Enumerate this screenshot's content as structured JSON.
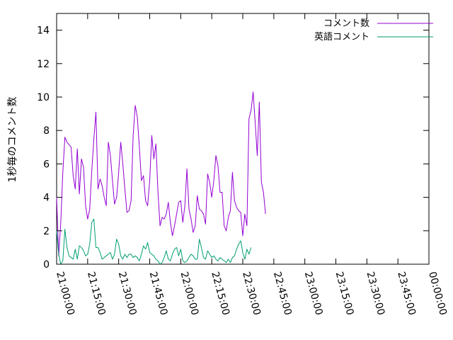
{
  "chart_data": {
    "type": "line",
    "ylabel": "1秒毎のコメント数",
    "xlabel": "",
    "ylim": [
      0,
      15
    ],
    "y_ticks": [
      0,
      2,
      4,
      6,
      8,
      10,
      12,
      14
    ],
    "x_range_minutes": [
      0,
      180
    ],
    "x_ticks": [
      {
        "minute": 0,
        "label": "21:00:00"
      },
      {
        "minute": 15,
        "label": "21:15:00"
      },
      {
        "minute": 30,
        "label": "21:30:00"
      },
      {
        "minute": 45,
        "label": "21:45:00"
      },
      {
        "minute": 60,
        "label": "22:00:00"
      },
      {
        "minute": 75,
        "label": "22:15:00"
      },
      {
        "minute": 90,
        "label": "22:30:00"
      },
      {
        "minute": 105,
        "label": "22:45:00"
      },
      {
        "minute": 120,
        "label": "23:00:00"
      },
      {
        "minute": 135,
        "label": "23:15:00"
      },
      {
        "minute": 150,
        "label": "23:30:00"
      },
      {
        "minute": 165,
        "label": "23:45:00"
      },
      {
        "minute": 180,
        "label": "00:00:00"
      }
    ],
    "grid": false,
    "legend_position": "top-right",
    "series": [
      {
        "name": "コメント数",
        "color": "#9400d3",
        "points": [
          [
            0,
            4.0
          ],
          [
            1,
            0.5
          ],
          [
            2,
            2.5
          ],
          [
            3,
            5.5
          ],
          [
            4,
            7.6
          ],
          [
            5,
            7.3
          ],
          [
            7,
            7.0
          ],
          [
            8,
            5.3
          ],
          [
            9,
            4.5
          ],
          [
            10,
            6.9
          ],
          [
            11,
            4.2
          ],
          [
            12,
            6.3
          ],
          [
            13,
            5.8
          ],
          [
            14,
            3.5
          ],
          [
            15,
            2.7
          ],
          [
            16,
            3.3
          ],
          [
            17,
            5.6
          ],
          [
            18,
            7.5
          ],
          [
            19,
            9.1
          ],
          [
            20,
            4.5
          ],
          [
            21,
            5.1
          ],
          [
            22,
            4.7
          ],
          [
            23,
            4.0
          ],
          [
            24,
            3.5
          ],
          [
            25,
            7.3
          ],
          [
            26,
            6.5
          ],
          [
            27,
            5.0
          ],
          [
            28,
            3.6
          ],
          [
            29,
            4.0
          ],
          [
            30,
            5.5
          ],
          [
            31,
            7.3
          ],
          [
            32,
            6.0
          ],
          [
            33,
            4.5
          ],
          [
            34,
            3.1
          ],
          [
            35,
            3.2
          ],
          [
            36,
            3.8
          ],
          [
            37,
            7.7
          ],
          [
            38,
            9.5
          ],
          [
            39,
            8.8
          ],
          [
            40,
            7.0
          ],
          [
            41,
            5.0
          ],
          [
            42,
            5.3
          ],
          [
            43,
            3.8
          ],
          [
            44,
            3.5
          ],
          [
            45,
            5.0
          ],
          [
            46,
            7.7
          ],
          [
            47,
            6.3
          ],
          [
            48,
            7.2
          ],
          [
            49,
            4.3
          ],
          [
            50,
            2.3
          ],
          [
            51,
            2.8
          ],
          [
            52,
            2.7
          ],
          [
            53,
            3.0
          ],
          [
            54,
            3.7
          ],
          [
            55,
            2.5
          ],
          [
            56,
            1.7
          ],
          [
            57,
            2.3
          ],
          [
            58,
            3.0
          ],
          [
            59,
            3.7
          ],
          [
            60,
            3.8
          ],
          [
            61,
            2.5
          ],
          [
            62,
            3.5
          ],
          [
            63,
            5.7
          ],
          [
            64,
            3.3
          ],
          [
            65,
            2.7
          ],
          [
            66,
            1.9
          ],
          [
            67,
            2.3
          ],
          [
            68,
            4.1
          ],
          [
            69,
            3.3
          ],
          [
            70,
            3.2
          ],
          [
            71,
            3.0
          ],
          [
            72,
            2.4
          ],
          [
            73,
            5.4
          ],
          [
            74,
            4.9
          ],
          [
            75,
            4.0
          ],
          [
            76,
            5.0
          ],
          [
            77,
            6.5
          ],
          [
            78,
            5.9
          ],
          [
            79,
            4.3
          ],
          [
            80,
            4.3
          ],
          [
            81,
            2.3
          ],
          [
            82,
            2.0
          ],
          [
            83,
            2.8
          ],
          [
            84,
            3.2
          ],
          [
            85,
            5.5
          ],
          [
            86,
            3.8
          ],
          [
            87,
            3.4
          ],
          [
            88,
            3.2
          ],
          [
            89,
            3.1
          ],
          [
            90,
            1.7
          ],
          [
            91,
            3.0
          ],
          [
            92,
            2.3
          ],
          [
            93,
            8.7
          ],
          [
            94,
            9.2
          ],
          [
            95,
            10.3
          ],
          [
            96,
            8.5
          ],
          [
            97,
            6.5
          ],
          [
            98,
            9.7
          ],
          [
            99,
            4.9
          ],
          [
            100,
            4.3
          ],
          [
            101,
            3.0
          ]
        ]
      },
      {
        "name": "英語コメント",
        "color": "#009e73",
        "points": [
          [
            0,
            2.0
          ],
          [
            1,
            0.6
          ],
          [
            2,
            0.0
          ],
          [
            3,
            0.2
          ],
          [
            4,
            2.1
          ],
          [
            5,
            1.0
          ],
          [
            6,
            0.5
          ],
          [
            7,
            0.4
          ],
          [
            8,
            0.3
          ],
          [
            9,
            0.9
          ],
          [
            10,
            0.3
          ],
          [
            11,
            1.1
          ],
          [
            12,
            1.0
          ],
          [
            13,
            0.8
          ],
          [
            14,
            0.5
          ],
          [
            15,
            0.6
          ],
          [
            16,
            1.2
          ],
          [
            17,
            2.5
          ],
          [
            18,
            2.7
          ],
          [
            19,
            1.0
          ],
          [
            20,
            1.0
          ],
          [
            21,
            0.7
          ],
          [
            22,
            0.3
          ],
          [
            23,
            0.4
          ],
          [
            24,
            0.5
          ],
          [
            25,
            0.6
          ],
          [
            26,
            0.7
          ],
          [
            27,
            0.3
          ],
          [
            28,
            0.6
          ],
          [
            29,
            1.5
          ],
          [
            30,
            1.2
          ],
          [
            31,
            0.5
          ],
          [
            32,
            0.3
          ],
          [
            33,
            0.6
          ],
          [
            34,
            0.4
          ],
          [
            35,
            0.6
          ],
          [
            36,
            0.6
          ],
          [
            37,
            0.4
          ],
          [
            38,
            0.5
          ],
          [
            39,
            0.4
          ],
          [
            40,
            0.2
          ],
          [
            41,
            0.6
          ],
          [
            42,
            1.1
          ],
          [
            43,
            0.9
          ],
          [
            44,
            1.3
          ],
          [
            45,
            0.7
          ],
          [
            46,
            0.6
          ],
          [
            47,
            0.5
          ],
          [
            48,
            0.3
          ],
          [
            49,
            0.2
          ],
          [
            50,
            0.0
          ],
          [
            51,
            0.1
          ],
          [
            52,
            0.4
          ],
          [
            53,
            0.8
          ],
          [
            54,
            0.3
          ],
          [
            55,
            0.2
          ],
          [
            56,
            0.6
          ],
          [
            57,
            0.9
          ],
          [
            58,
            1.0
          ],
          [
            59,
            0.5
          ],
          [
            60,
            0.9
          ],
          [
            61,
            0.2
          ],
          [
            62,
            0.1
          ],
          [
            63,
            0.2
          ],
          [
            64,
            0.4
          ],
          [
            65,
            0.6
          ],
          [
            66,
            0.5
          ],
          [
            67,
            0.3
          ],
          [
            68,
            0.3
          ],
          [
            69,
            1.5
          ],
          [
            70,
            1.0
          ],
          [
            71,
            0.4
          ],
          [
            72,
            0.3
          ],
          [
            73,
            0.8
          ],
          [
            74,
            0.6
          ],
          [
            75,
            0.4
          ],
          [
            76,
            0.5
          ],
          [
            77,
            0.3
          ],
          [
            78,
            0.2
          ],
          [
            79,
            0.4
          ],
          [
            80,
            0.3
          ],
          [
            81,
            0.2
          ],
          [
            82,
            0.1
          ],
          [
            83,
            0.3
          ],
          [
            84,
            0.1
          ],
          [
            85,
            0.4
          ],
          [
            86,
            0.5
          ],
          [
            87,
            0.9
          ],
          [
            88,
            1.2
          ],
          [
            89,
            1.4
          ],
          [
            90,
            0.7
          ],
          [
            91,
            0.3
          ],
          [
            92,
            0.9
          ],
          [
            93,
            0.6
          ],
          [
            94,
            1.0
          ]
        ]
      }
    ]
  }
}
